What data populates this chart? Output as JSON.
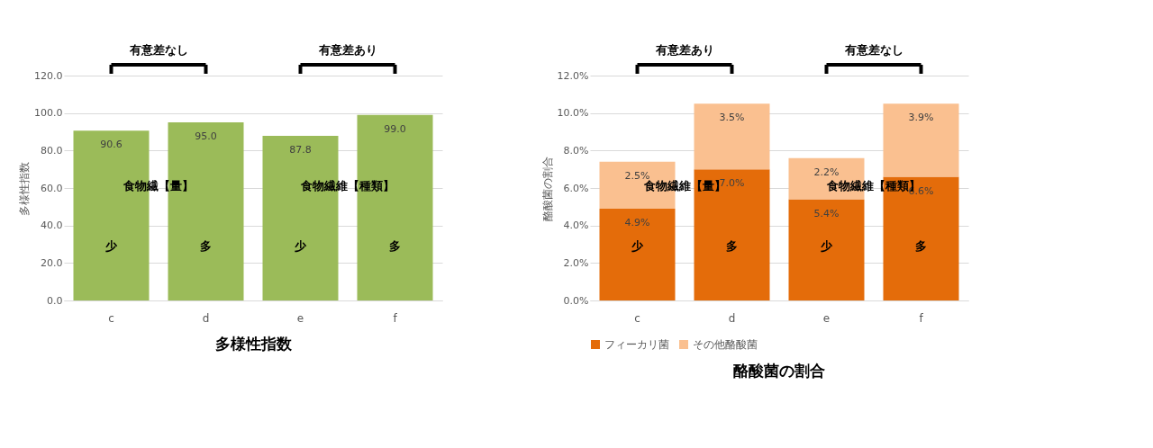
{
  "chart_data": [
    {
      "type": "bar",
      "title": "多様性指数",
      "ylabel": "多様性指数",
      "categories": [
        "c",
        "d",
        "e",
        "f"
      ],
      "series": [
        {
          "color": "#9bbb59",
          "values": [
            90.6,
            95.0,
            87.8,
            99.0
          ],
          "value_labels": [
            "90.6",
            "95.0",
            "87.8",
            "99.0"
          ]
        }
      ],
      "ylim": [
        0,
        120
      ],
      "yticks": [
        {
          "value": 0,
          "label": "0.0"
        },
        {
          "value": 20,
          "label": "20.0"
        },
        {
          "value": 40,
          "label": "40.0"
        },
        {
          "value": 60,
          "label": "60.0"
        },
        {
          "value": 80,
          "label": "80.0"
        },
        {
          "value": 100,
          "label": "100.0"
        },
        {
          "value": 120,
          "label": "120.0"
        }
      ],
      "grid": "y",
      "annotations": [
        "有意差なし",
        "有意差あり",
        "食物繊【量】",
        "食物繊維【種類】",
        "少",
        "多",
        "少",
        "多"
      ]
    },
    {
      "type": "bar",
      "title": "酪酸菌の割合",
      "ylabel": "酪酸菌の割合",
      "categories": [
        "c",
        "d",
        "e",
        "f"
      ],
      "stacked": true,
      "series": [
        {
          "name": "フィーカリ菌",
          "color": "#e46c0a",
          "values": [
            4.9,
            7.0,
            5.4,
            6.6
          ],
          "value_labels": [
            "4.9%",
            "7.0%",
            "5.4%",
            "6.6%"
          ]
        },
        {
          "name": "その他酪酸菌",
          "color": "#fac090",
          "values": [
            2.5,
            3.5,
            2.2,
            3.9
          ],
          "value_labels": [
            "2.5%",
            "3.5%",
            "2.2%",
            "3.9%"
          ]
        }
      ],
      "ylim": [
        0,
        12
      ],
      "yticks": [
        {
          "value": 0,
          "label": "0.0%"
        },
        {
          "value": 2,
          "label": "2.0%"
        },
        {
          "value": 4,
          "label": "4.0%"
        },
        {
          "value": 6,
          "label": "6.0%"
        },
        {
          "value": 8,
          "label": "8.0%"
        },
        {
          "value": 10,
          "label": "10.0%"
        },
        {
          "value": 12,
          "label": "12.0%"
        }
      ],
      "grid": "y",
      "legend": "bottom",
      "annotations": [
        "有意差あり",
        "有意差なし",
        "食物繊維【量】",
        "食物繊維【種類】",
        "少",
        "多",
        "少",
        "多"
      ]
    }
  ]
}
